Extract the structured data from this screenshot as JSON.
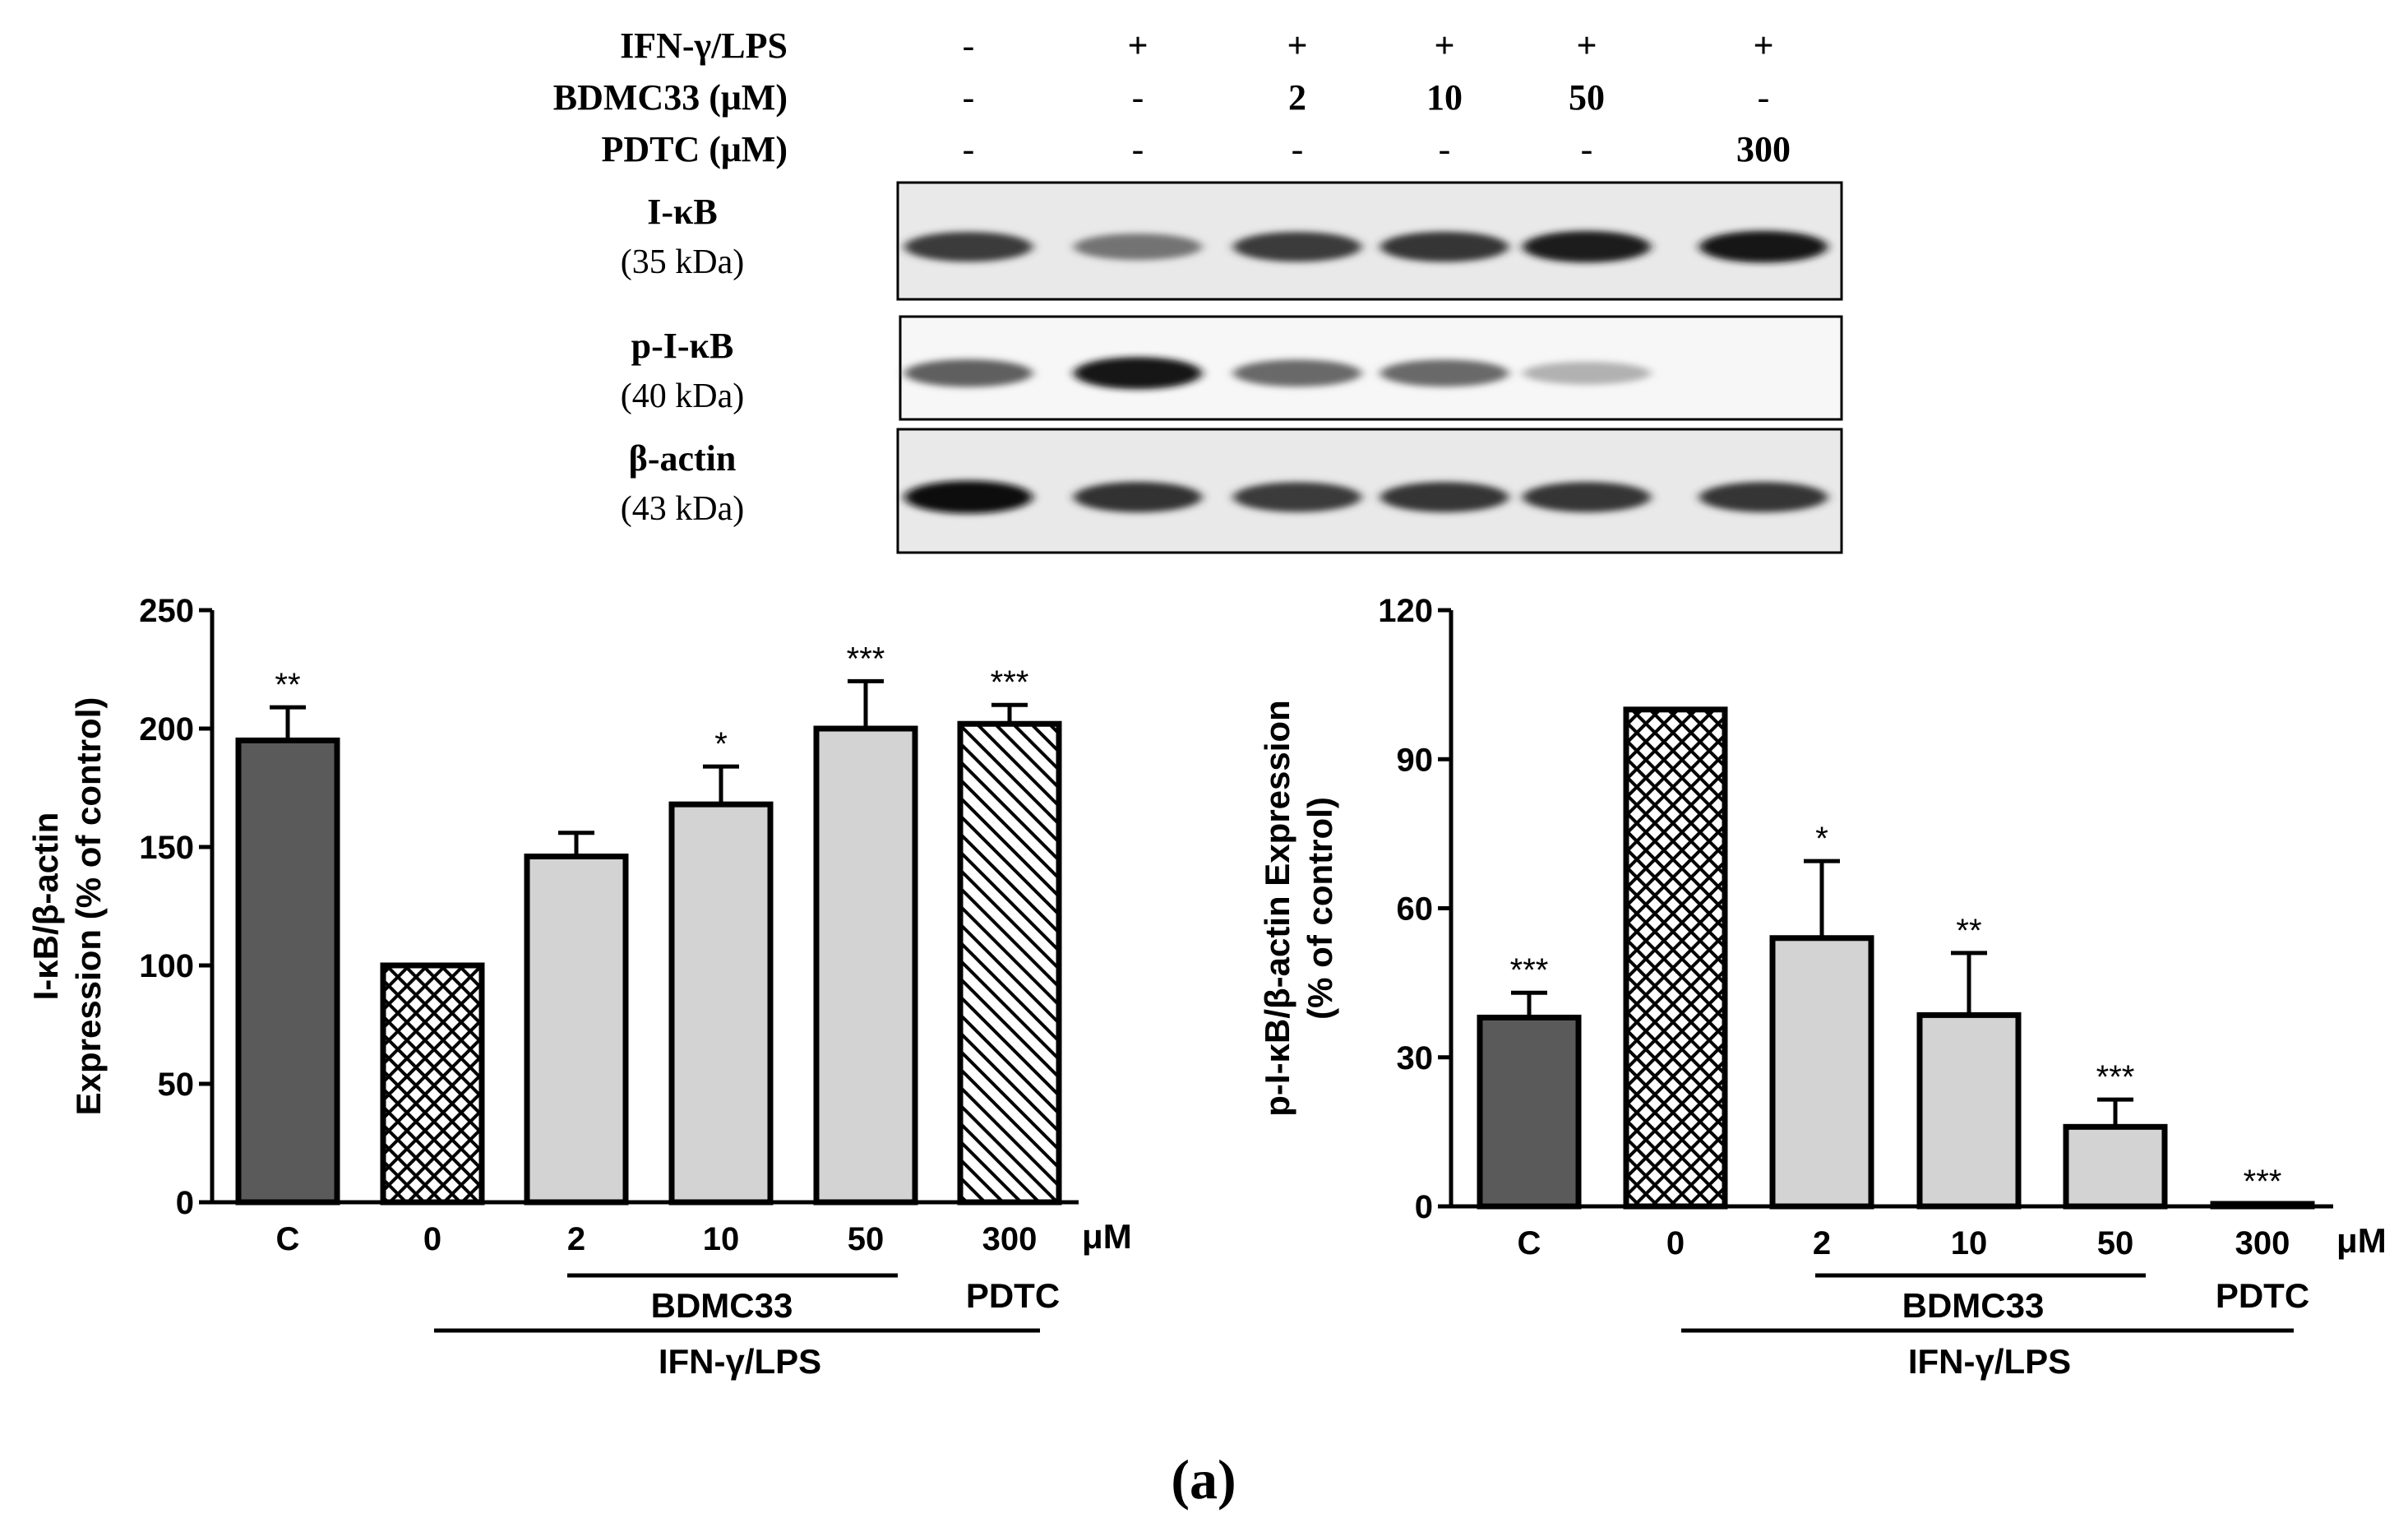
{
  "panel_label": "(a)",
  "blot": {
    "conditions": [
      {
        "label": "IFN-γ/LPS",
        "values": [
          "-",
          "+",
          "+",
          "+",
          "+",
          "+"
        ]
      },
      {
        "label": "BDMC33 (μM)",
        "values": [
          "-",
          "-",
          "2",
          "10",
          "50",
          "-"
        ]
      },
      {
        "label": "PDTC (μM)",
        "values": [
          "-",
          "-",
          "-",
          "-",
          "-",
          "300"
        ]
      }
    ],
    "rows": [
      {
        "name": "I-κB",
        "weight": "(35 kDa)",
        "intensities": [
          0.75,
          0.45,
          0.75,
          0.78,
          0.9,
          0.92
        ]
      },
      {
        "name": "p-I-κB",
        "weight": "(40 kDa)",
        "intensities": [
          0.55,
          0.95,
          0.5,
          0.5,
          0.12,
          0.0
        ]
      },
      {
        "name": "β-actin",
        "weight": "(43 kDa)",
        "intensities": [
          1.0,
          0.8,
          0.75,
          0.78,
          0.78,
          0.78
        ]
      }
    ]
  },
  "chart_data": [
    {
      "type": "bar",
      "ylabel_lines": [
        "I-κB/β-actin",
        "Expression (% of control)"
      ],
      "ylim": [
        0,
        250
      ],
      "yticks": [
        0,
        50,
        100,
        150,
        200,
        250
      ],
      "categories": [
        "C",
        "0",
        "2",
        "10",
        "50",
        "300"
      ],
      "unit_label": "μM",
      "values": [
        195,
        100,
        146,
        168,
        200,
        202
      ],
      "errors": [
        14,
        0,
        10,
        16,
        20,
        8
      ],
      "significance": [
        "**",
        "",
        "",
        "*",
        "***",
        "***"
      ],
      "patterns": [
        "dark",
        "crosshatch",
        "light",
        "light",
        "light",
        "diagonal"
      ],
      "groups": [
        {
          "label": "BDMC33",
          "from": 2,
          "to": 4
        },
        {
          "label": "PDTC",
          "from": 5,
          "to": 5
        },
        {
          "label": "IFN-γ/LPS",
          "from": 1,
          "to": 5
        }
      ],
      "colors": {
        "dark": "#5a5a5a",
        "light": "#d3d3d3",
        "edge": "#000000"
      }
    },
    {
      "type": "bar",
      "ylabel_lines": [
        "p-I-κB/β-actin Expression",
        "(% of control)"
      ],
      "ylim": [
        0,
        120
      ],
      "yticks": [
        0,
        30,
        60,
        90,
        120
      ],
      "categories": [
        "C",
        "0",
        "2",
        "10",
        "50",
        "300"
      ],
      "unit_label": "μM",
      "values": [
        38,
        100,
        54,
        38.5,
        16,
        0.5
      ],
      "errors": [
        5,
        0,
        15.5,
        12.5,
        5.5,
        0
      ],
      "significance": [
        "***",
        "",
        "*",
        "**",
        "***",
        "***"
      ],
      "patterns": [
        "dark",
        "crosshatch",
        "light",
        "light",
        "light",
        "diagonal"
      ],
      "groups": [
        {
          "label": "BDMC33",
          "from": 2,
          "to": 4
        },
        {
          "label": "PDTC",
          "from": 5,
          "to": 5
        },
        {
          "label": "IFN-γ/LPS",
          "from": 1,
          "to": 5
        }
      ],
      "colors": {
        "dark": "#5a5a5a",
        "light": "#d3d3d3",
        "edge": "#000000"
      }
    }
  ]
}
